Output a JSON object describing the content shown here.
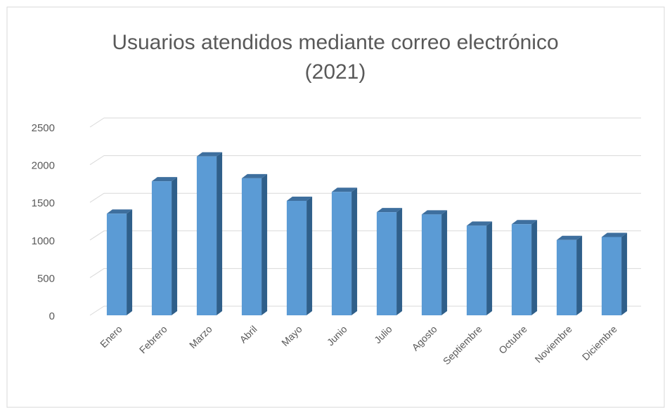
{
  "chart_data": {
    "type": "bar",
    "title": [
      "Usuarios atendidos mediante correo electrónico",
      "(2021)"
    ],
    "categories": [
      "Enero",
      "Febrero",
      "Marzo",
      "Abril",
      "Mayo",
      "Junio",
      "Julio",
      "Agosto",
      "Septiembre",
      "Octubre",
      "Noviembre",
      "Diciembre"
    ],
    "values": [
      1350,
      1780,
      2110,
      1820,
      1520,
      1640,
      1370,
      1340,
      1190,
      1210,
      1000,
      1040
    ],
    "color": "#5b9bd5",
    "ylim": [
      0,
      2500
    ],
    "yticks": [
      0,
      500,
      1000,
      1500,
      2000,
      2500
    ],
    "grid": true
  }
}
